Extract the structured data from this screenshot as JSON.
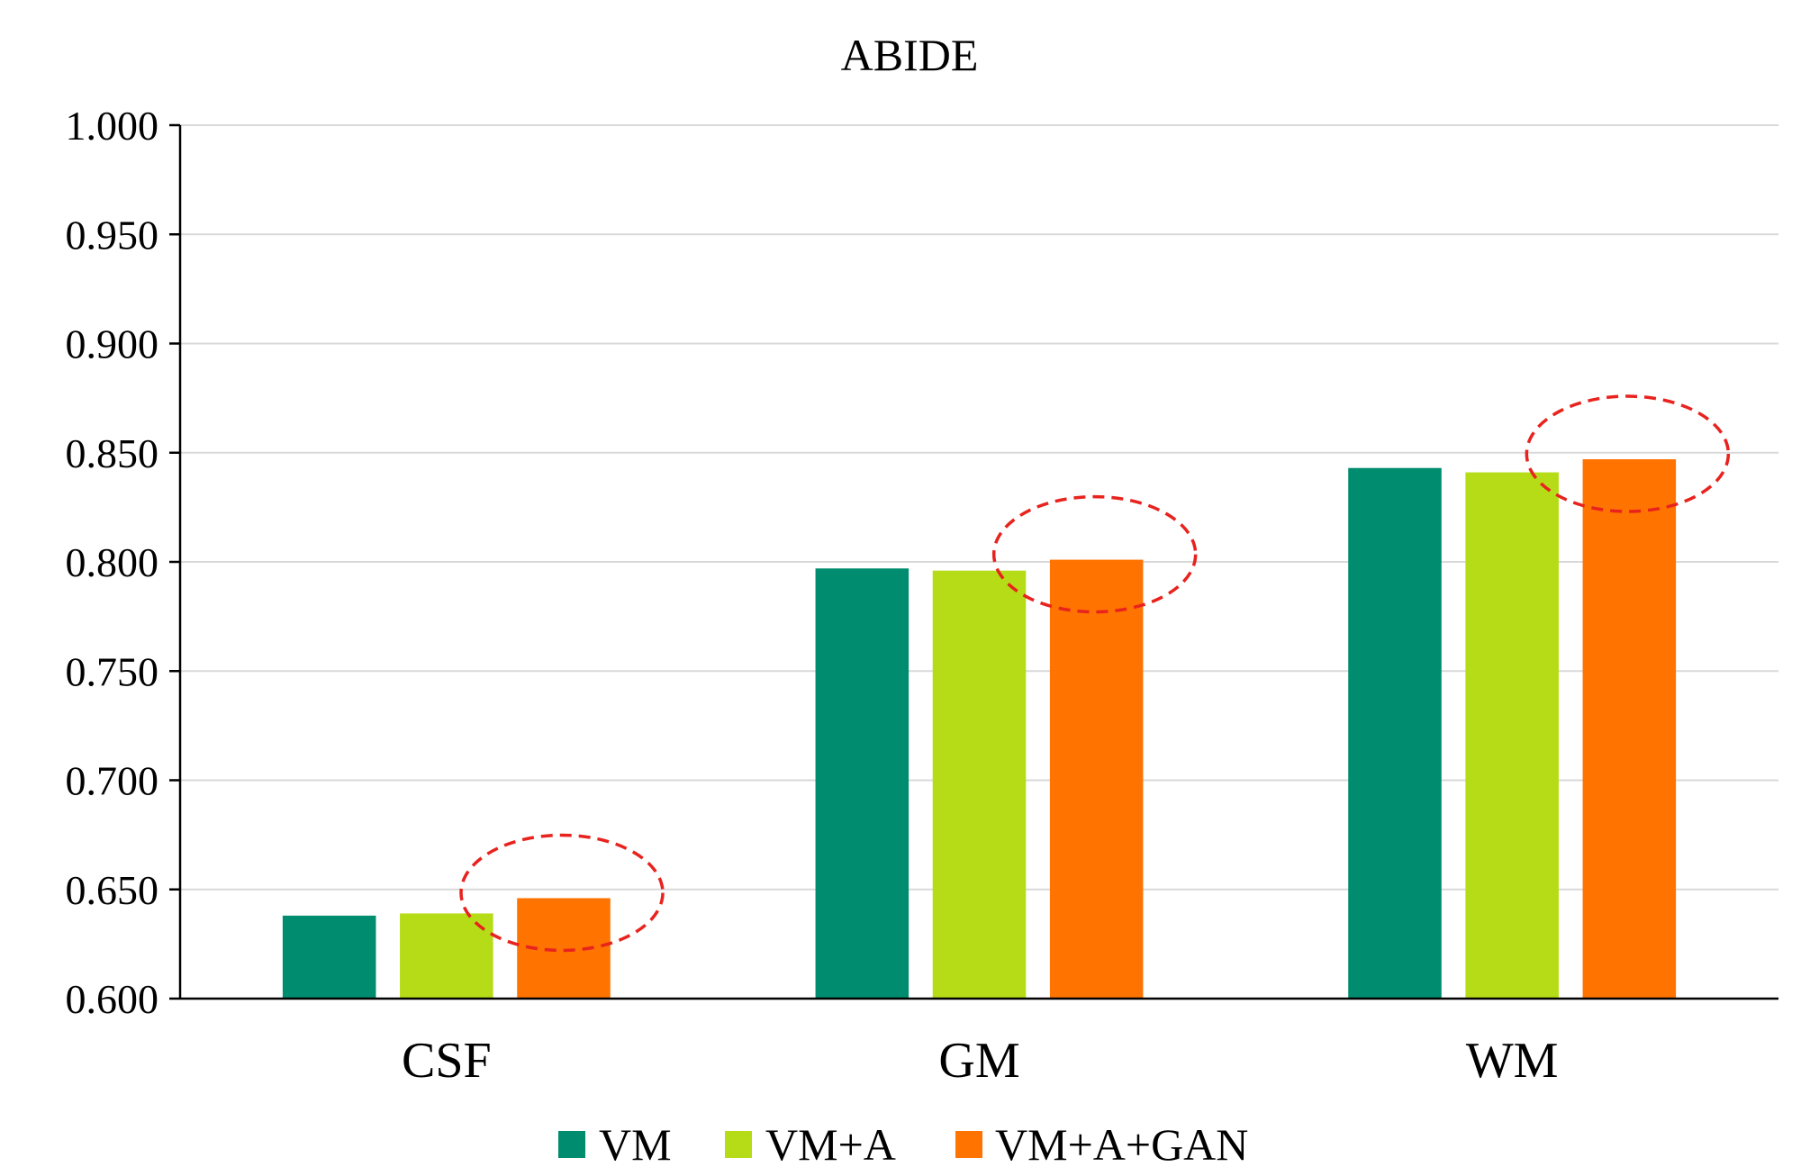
{
  "chart_data": {
    "type": "bar",
    "title": "ABIDE",
    "xlabel": "",
    "ylabel": "",
    "categories": [
      "CSF",
      "GM",
      "WM"
    ],
    "series": [
      {
        "name": "VM",
        "color": "#008c6e",
        "values": [
          0.638,
          0.797,
          0.843
        ]
      },
      {
        "name": "VM+A",
        "color": "#b5dc17",
        "values": [
          0.639,
          0.796,
          0.841
        ]
      },
      {
        "name": "VM+A+GAN",
        "color": "#ff7300",
        "values": [
          0.646,
          0.801,
          0.847
        ]
      }
    ],
    "ylim": [
      0.6,
      1.0
    ],
    "yticks": [
      "0.600",
      "0.650",
      "0.700",
      "0.750",
      "0.800",
      "0.850",
      "0.900",
      "0.950",
      "1.000"
    ],
    "grid": true,
    "legend": "bottom",
    "annotations": {
      "type": "dashed-ellipse",
      "color": "#e8231e",
      "highlight_series": "VM+A+GAN"
    }
  }
}
